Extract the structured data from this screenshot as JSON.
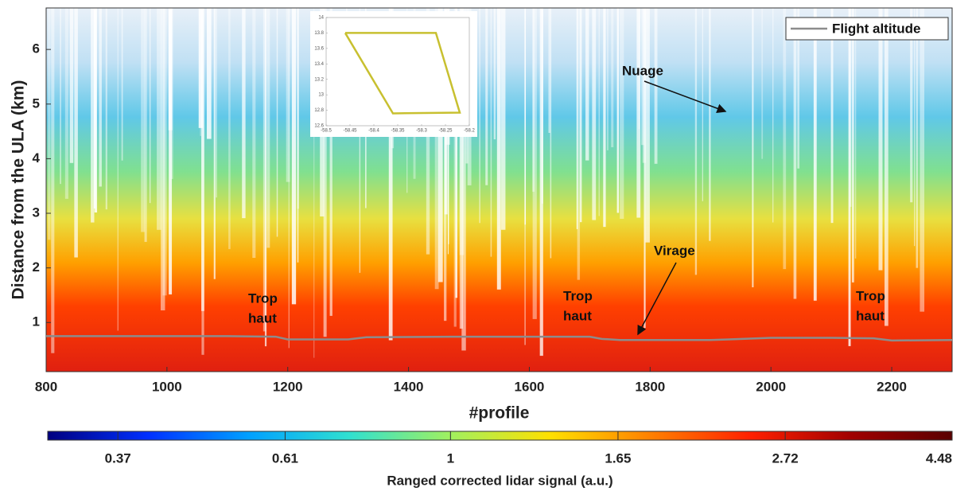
{
  "chart_data": [
    {
      "type": "heatmap",
      "x_label": "#profile",
      "y_label": "Distance from the ULA (km)",
      "xlim": [
        800,
        2300
      ],
      "xticks": [
        800,
        1000,
        1200,
        1400,
        1600,
        1800,
        2000,
        2200
      ],
      "ylim": [
        0.1,
        6.76
      ],
      "yticks": [
        1,
        2,
        3,
        4,
        5,
        6
      ],
      "series": [
        {
          "name": "Flight altitude",
          "color": "#8c8c8c",
          "x": [
            800,
            900,
            1000,
            1100,
            1180,
            1200,
            1300,
            1330,
            1470,
            1600,
            1700,
            1720,
            1750,
            1900,
            1930,
            2000,
            2100,
            2170,
            2200,
            2300
          ],
          "values": [
            0.75,
            0.75,
            0.75,
            0.75,
            0.74,
            0.69,
            0.69,
            0.73,
            0.74,
            0.74,
            0.74,
            0.7,
            0.68,
            0.68,
            0.69,
            0.72,
            0.72,
            0.71,
            0.67,
            0.68
          ]
        }
      ],
      "legend": "upper right",
      "annotations": [
        {
          "text": "Trop"
        },
        {
          "text": "haut"
        },
        {
          "text": "Trop"
        },
        {
          "text": "haut"
        },
        {
          "text": "Trop"
        },
        {
          "text": "haut"
        },
        {
          "text": "Nuage"
        },
        {
          "text": "Virage"
        }
      ],
      "colorbar": {
        "label": "Ranged corrected lidar signal (a.u.)",
        "log": true,
        "lim": [
          0.3,
          4.48
        ],
        "ticks": [
          0.37,
          0.61,
          1,
          1.65,
          2.72,
          4.48
        ],
        "colormap": [
          "#00007f",
          "#0030ff",
          "#00a0ff",
          "#30e0d0",
          "#a0f060",
          "#ffe000",
          "#ff8000",
          "#ff2000",
          "#a00000",
          "#5a0000"
        ]
      }
    },
    {
      "type": "line",
      "xlim": [
        -58.5,
        -58.2
      ],
      "xticks": [
        -58.5,
        -58.45,
        -58.4,
        -58.35,
        -58.3,
        -58.25,
        -58.2
      ],
      "ylim": [
        12.6,
        14
      ],
      "yticks": [
        12.6,
        12.8,
        13,
        13.2,
        13.4,
        13.6,
        13.8,
        14
      ],
      "series": [
        {
          "color": "#c8c030",
          "x": [
            -58.46,
            -58.27,
            -58.22,
            -58.36,
            -58.46
          ],
          "values": [
            13.8,
            13.8,
            12.77,
            12.76,
            13.8
          ]
        }
      ]
    }
  ]
}
